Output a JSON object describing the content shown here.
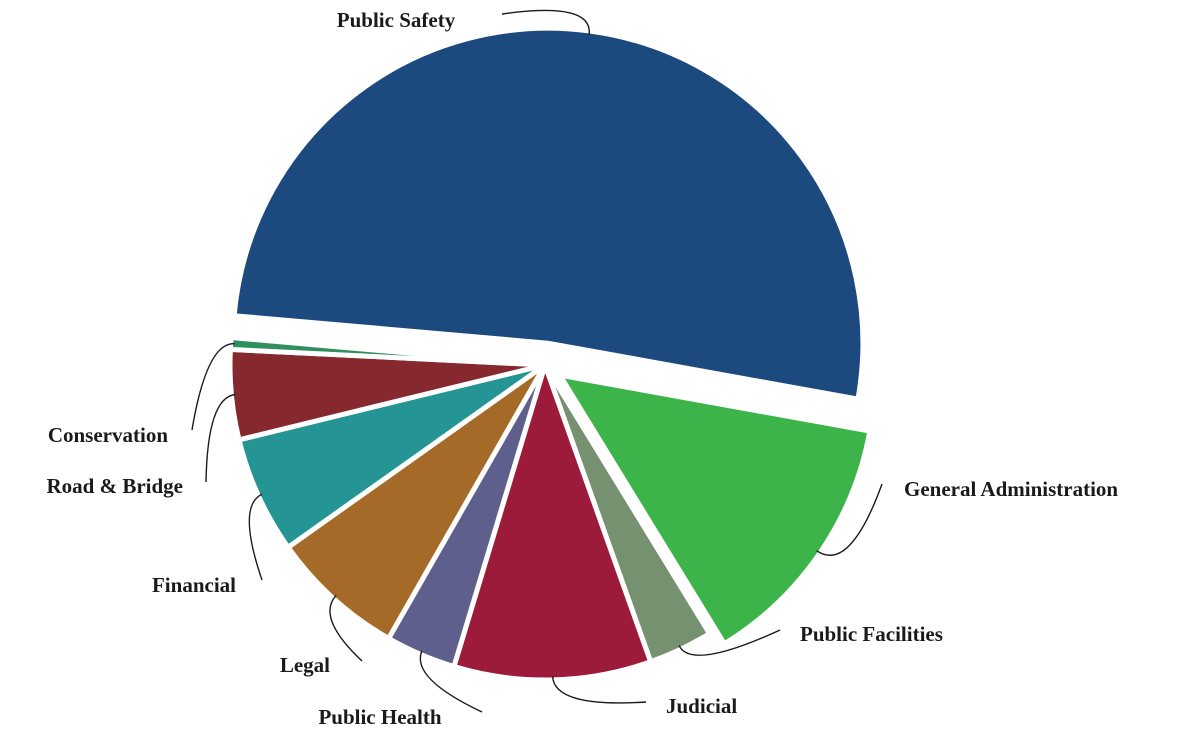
{
  "chart_data": {
    "type": "pie",
    "title": "",
    "slices": [
      {
        "label": "Public Safety",
        "value": 51.4,
        "color": "#1c4a7e"
      },
      {
        "label": "General Administration",
        "value": 13.4,
        "color": "#3cb44a"
      },
      {
        "label": "Public Facilities",
        "value": 3.3,
        "color": "#76916f"
      },
      {
        "label": "Judicial",
        "value": 10.1,
        "color": "#9c1b3a"
      },
      {
        "label": "Public Health",
        "value": 3.6,
        "color": "#5f5f8e"
      },
      {
        "label": "Legal",
        "value": 6.9,
        "color": "#a56a27"
      },
      {
        "label": "Financial",
        "value": 6.0,
        "color": "#249594"
      },
      {
        "label": "Road & Bridge",
        "value": 4.6,
        "color": "#86292f"
      },
      {
        "label": "Conservation",
        "value": 0.6,
        "color": "#2f8f5d"
      }
    ],
    "legend": "none",
    "labels_outside": true
  }
}
